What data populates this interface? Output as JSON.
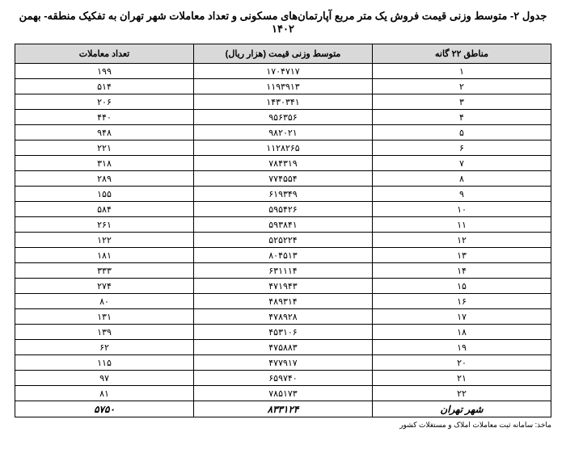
{
  "title": "جدول ۲- متوسط وزنی قیمت فروش یک متر مربع آپارتمان‌های مسکونی و تعداد معاملات شهر تهران به تفکیک منطقه- بهمن ۱۴۰۲",
  "columns": {
    "region": "مناطق ۲۲ گانه",
    "price": "متوسط وزنی قیمت (هزار ریال)",
    "count": "تعداد معاملات"
  },
  "rows": [
    {
      "region": "۱",
      "price": "۱۷۰۴۷۱۷",
      "count": "۱۹۹"
    },
    {
      "region": "۲",
      "price": "۱۱۹۳۹۱۳",
      "count": "۵۱۴"
    },
    {
      "region": "۳",
      "price": "۱۴۳۰۳۴۱",
      "count": "۲۰۶"
    },
    {
      "region": "۴",
      "price": "۹۵۶۳۵۶",
      "count": "۴۴۰"
    },
    {
      "region": "۵",
      "price": "۹۸۲۰۲۱",
      "count": "۹۴۸"
    },
    {
      "region": "۶",
      "price": "۱۱۲۸۲۶۵",
      "count": "۲۲۱"
    },
    {
      "region": "۷",
      "price": "۷۸۴۳۱۹",
      "count": "۳۱۸"
    },
    {
      "region": "۸",
      "price": "۷۷۴۵۵۴",
      "count": "۲۸۹"
    },
    {
      "region": "۹",
      "price": "۶۱۹۳۴۹",
      "count": "۱۵۵"
    },
    {
      "region": "۱۰",
      "price": "۵۹۵۴۲۶",
      "count": "۵۸۴"
    },
    {
      "region": "۱۱",
      "price": "۵۹۳۸۴۱",
      "count": "۲۶۱"
    },
    {
      "region": "۱۲",
      "price": "۵۲۵۲۲۴",
      "count": "۱۲۲"
    },
    {
      "region": "۱۳",
      "price": "۸۰۴۵۱۳",
      "count": "۱۸۱"
    },
    {
      "region": "۱۴",
      "price": "۶۳۱۱۱۴",
      "count": "۳۳۳"
    },
    {
      "region": "۱۵",
      "price": "۴۷۱۹۴۳",
      "count": "۲۷۴"
    },
    {
      "region": "۱۶",
      "price": "۴۸۹۳۱۴",
      "count": "۸۰"
    },
    {
      "region": "۱۷",
      "price": "۴۷۸۹۲۸",
      "count": "۱۳۱"
    },
    {
      "region": "۱۸",
      "price": "۴۵۳۱۰۶",
      "count": "۱۳۹"
    },
    {
      "region": "۱۹",
      "price": "۴۷۵۸۸۳",
      "count": "۶۲"
    },
    {
      "region": "۲۰",
      "price": "۴۷۷۹۱۷",
      "count": "۱۱۵"
    },
    {
      "region": "۲۱",
      "price": "۶۵۹۷۴۰",
      "count": "۹۷"
    },
    {
      "region": "۲۲",
      "price": "۷۸۵۱۷۳",
      "count": "۸۱"
    }
  ],
  "total": {
    "region": "شهر تهران",
    "price": "۸۳۳۱۲۴",
    "count": "۵۷۵۰"
  },
  "source": "ماخذ: سامانه ثبت معاملات املاک و مستغلات کشور"
}
